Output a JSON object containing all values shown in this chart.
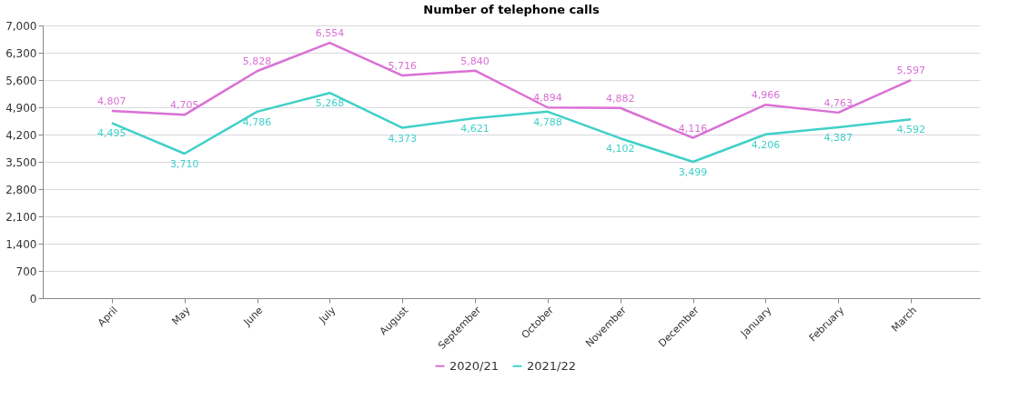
{
  "chart_data": {
    "type": "line",
    "title": "Number of telephone calls",
    "categories": [
      "April",
      "May",
      "June",
      "July",
      "August",
      "September",
      "October",
      "November",
      "December",
      "January",
      "February",
      "March"
    ],
    "series": [
      {
        "name": "2020/21",
        "color": "#da70d6",
        "values": [
          4807,
          4705,
          5828,
          6554,
          5716,
          5840,
          4894,
          4882,
          4116,
          4966,
          4763,
          5597
        ],
        "value_labels": [
          "4,807",
          "4,705",
          "5,828",
          "6,554",
          "5,716",
          "5,840",
          "4,894",
          "4,882",
          "4,116",
          "4,966",
          "4,763",
          "5,597"
        ]
      },
      {
        "name": "2021/22",
        "color": "#40d0c8",
        "values": [
          4495,
          3710,
          4786,
          5268,
          4373,
          4621,
          4788,
          4102,
          3499,
          4206,
          4387,
          4592
        ],
        "value_labels": [
          "4,495",
          "3,710",
          "4,786",
          "5,268",
          "4,373",
          "4,621",
          "4,788",
          "4,102",
          "3,499",
          "4,206",
          "4,387",
          "4,592"
        ]
      }
    ],
    "ylim": [
      0,
      7000
    ],
    "yticks": [
      0,
      {
        "value": 700,
        "label": "700"
      },
      {
        "value": 1400,
        "label": "1,400"
      },
      {
        "value": 2100,
        "label": "2,100"
      },
      {
        "value": 2800,
        "label": "2,800"
      },
      {
        "value": 3500,
        "label": "3,500"
      },
      {
        "value": 4200,
        "label": "4,200"
      },
      {
        "value": 4900,
        "label": "4,900"
      },
      {
        "value": 5600,
        "label": "5,600"
      },
      {
        "value": 6300,
        "label": "6,300"
      },
      {
        "value": 7000,
        "label": "7,000"
      }
    ],
    "grid": "y",
    "legend": "bottom",
    "marker": "none",
    "line_style": "solid"
  }
}
